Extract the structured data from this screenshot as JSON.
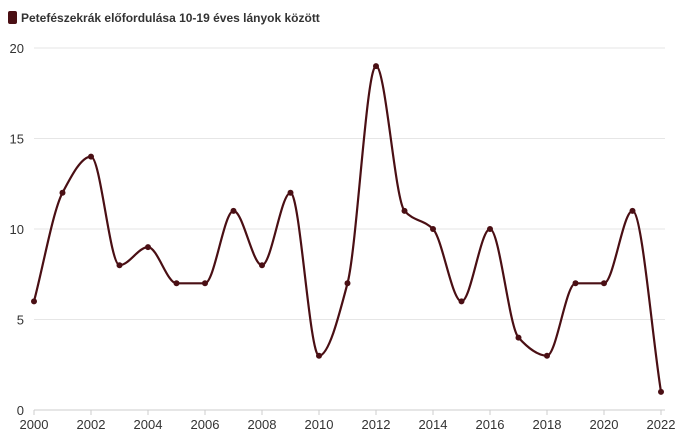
{
  "chart_data": {
    "type": "line",
    "title": "",
    "xlabel": "",
    "ylabel": "",
    "legend_position": "top-left",
    "grid": true,
    "smooth": true,
    "xlim": [
      2000,
      2022
    ],
    "ylim": [
      0,
      20
    ],
    "x_ticks": [
      2000,
      2002,
      2004,
      2006,
      2008,
      2010,
      2012,
      2014,
      2016,
      2018,
      2020,
      2022
    ],
    "y_ticks": [
      0,
      5,
      10,
      15,
      20
    ],
    "x": [
      2000,
      2001,
      2002,
      2003,
      2004,
      2005,
      2006,
      2007,
      2008,
      2009,
      2010,
      2011,
      2012,
      2013,
      2014,
      2015,
      2016,
      2017,
      2018,
      2019,
      2020,
      2021,
      2022
    ],
    "series": [
      {
        "name": "Petefészekrák előfordulása 10-19 éves lányok között",
        "color": "#4a0f14",
        "values": [
          6,
          12,
          14,
          8,
          9,
          7,
          7,
          11,
          8,
          12,
          3,
          7,
          19,
          11,
          10,
          6,
          10,
          4,
          3,
          7,
          7,
          11,
          1
        ]
      }
    ]
  }
}
